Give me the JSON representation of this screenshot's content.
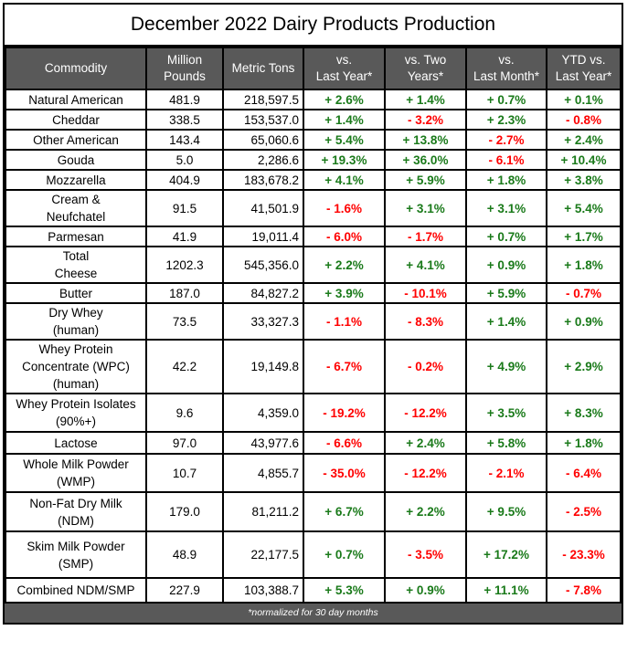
{
  "title": "December 2022 Dairy Products Production",
  "colors": {
    "header_bg": "#595959",
    "positive": "#1a7a1a",
    "negative": "#ff0000"
  },
  "columns": [
    "Commodity",
    "Million\nPounds",
    "Metric Tons",
    "vs.\nLast Year*",
    "vs. Two\nYears*",
    "vs.\nLast Month*",
    "YTD vs.\nLast Year*"
  ],
  "rows": [
    [
      "Natural American",
      "481.9",
      "218,597.5",
      "+ 2.6%",
      "+ 1.4%",
      "+ 0.7%",
      "+ 0.1%"
    ],
    [
      "Cheddar",
      "338.5",
      "153,537.0",
      "+ 1.4%",
      "- 3.2%",
      "+ 2.3%",
      "- 0.8%"
    ],
    [
      "Other American",
      "143.4",
      "65,060.6",
      "+ 5.4%",
      "+ 13.8%",
      "- 2.7%",
      "+ 2.4%"
    ],
    [
      "Gouda",
      "5.0",
      "2,286.6",
      "+ 19.3%",
      "+ 36.0%",
      "- 6.1%",
      "+ 10.4%"
    ],
    [
      "Mozzarella",
      "404.9",
      "183,678.2",
      "+ 4.1%",
      "+ 5.9%",
      "+ 1.8%",
      "+ 3.8%"
    ],
    [
      "Cream &\nNeufchatel",
      "91.5",
      "41,501.9",
      "- 1.6%",
      "+ 3.1%",
      "+ 3.1%",
      "+ 5.4%"
    ],
    [
      "Parmesan",
      "41.9",
      "19,011.4",
      "- 6.0%",
      "- 1.7%",
      "+ 0.7%",
      "+ 1.7%"
    ],
    [
      "Total\nCheese",
      "1202.3",
      "545,356.0",
      "+ 2.2%",
      "+ 4.1%",
      "+ 0.9%",
      "+ 1.8%"
    ],
    [
      "Butter",
      "187.0",
      "84,827.2",
      "+ 3.9%",
      "- 10.1%",
      "+ 5.9%",
      "- 0.7%"
    ],
    [
      "Dry Whey\n(human)",
      "73.5",
      "33,327.3",
      "- 1.1%",
      "- 8.3%",
      "+ 1.4%",
      "+ 0.9%"
    ],
    [
      "Whey Protein\nConcentrate (WPC)\n(human)",
      "42.2",
      "19,149.8",
      "- 6.7%",
      "- 0.2%",
      "+ 4.9%",
      "+ 2.9%"
    ],
    [
      "Whey Protein Isolates\n(90%+)",
      "9.6",
      "4,359.0",
      "- 19.2%",
      "- 12.2%",
      "+ 3.5%",
      "+ 8.3%"
    ],
    [
      "Lactose",
      "97.0",
      "43,977.6",
      "- 6.6%",
      "+ 2.4%",
      "+ 5.8%",
      "+ 1.8%"
    ],
    [
      "Whole Milk Powder\n(WMP)",
      "10.7",
      "4,855.7",
      "- 35.0%",
      "- 12.2%",
      "- 2.1%",
      "- 6.4%"
    ],
    [
      "Non-Fat Dry Milk\n(NDM)",
      "179.0",
      "81,211.2",
      "+ 6.7%",
      "+ 2.2%",
      "+ 9.5%",
      "- 2.5%"
    ],
    [
      "Skim Milk Powder\n(SMP)",
      "48.9",
      "22,177.5",
      "+ 0.7%",
      "- 3.5%",
      "+ 17.2%",
      "- 23.3%"
    ],
    [
      "Combined NDM/SMP",
      "227.9",
      "103,388.7",
      "+ 5.3%",
      "+ 0.9%",
      "+ 11.1%",
      "- 7.8%"
    ]
  ],
  "footnote": "*normalized for 30 day months"
}
